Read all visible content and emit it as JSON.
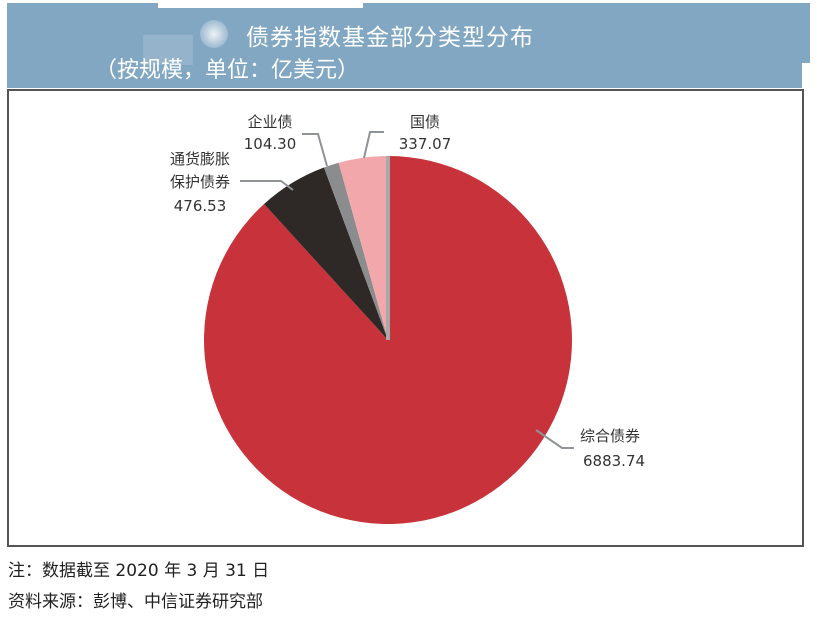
{
  "header": {
    "title": "债券指数基金部分类型分布",
    "subtitle": "（按规模，单位：亿美元）"
  },
  "chart_data": {
    "type": "pie",
    "title": "债券指数基金部分类型分布",
    "subtitle": "（按规模，单位：亿美元）",
    "unit": "亿美元",
    "start_angle_deg": 0,
    "direction": "counterclockwise-from-top (largest slice wraps clockwise)",
    "slices": [
      {
        "label": "综合债券",
        "value": 6883.74,
        "color": "#c8323a"
      },
      {
        "label": "通货膨胀保护债券",
        "value": 476.53,
        "color": "#2e2826"
      },
      {
        "label": "企业债",
        "value": 104.3,
        "color": "#8a8c8e"
      },
      {
        "label": "国债",
        "value": 337.07,
        "color": "#f2a8ab"
      }
    ],
    "legend": "none (leader-line labels)"
  },
  "labels": {
    "zonghe": {
      "name": "综合债券",
      "value": "6883.74"
    },
    "tips": {
      "name_line1": "通货膨胀",
      "name_line2": "保护债券",
      "value": "476.53"
    },
    "corp": {
      "name": "企业债",
      "value": "104.30"
    },
    "gov": {
      "name": "国债",
      "value": "337.07"
    }
  },
  "footer": {
    "note": "注：数据截至 2020 年 3 月 31 日",
    "source": "资料来源：彭博、中信证券研究部"
  }
}
